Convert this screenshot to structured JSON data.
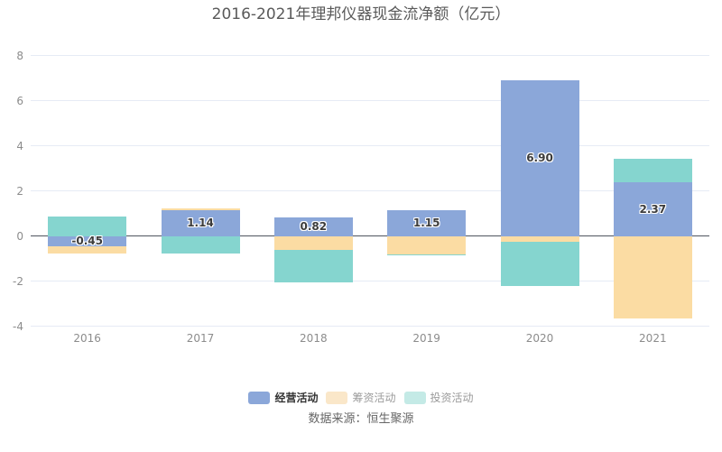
{
  "title": "2016-2021年理邦仪器现金流净额（亿元）",
  "source": "数据来源：恒生聚源",
  "chart_data": {
    "type": "bar",
    "stacked": true,
    "categories": [
      "2016",
      "2017",
      "2018",
      "2019",
      "2020",
      "2021"
    ],
    "series": [
      {
        "key": "operating",
        "name": "经营活动",
        "color": "#8BA7D9",
        "values": [
          -0.45,
          1.14,
          0.82,
          1.15,
          6.9,
          2.37
        ],
        "labels": [
          "-0.45",
          "1.14",
          "0.82",
          "1.15",
          "6.90",
          "2.37"
        ]
      },
      {
        "key": "financing",
        "name": "筹资活动",
        "color": "#FBDCA3",
        "values": [
          -0.33,
          0.08,
          -0.6,
          -0.8,
          -0.26,
          -3.66
        ]
      },
      {
        "key": "investing",
        "name": "投资活动",
        "color": "#85D5CF",
        "values": [
          0.87,
          -0.78,
          -1.45,
          -0.05,
          -1.95,
          1.05
        ]
      }
    ],
    "ylim": [
      -4,
      8
    ],
    "yticks": [
      8,
      6,
      4,
      2,
      0,
      -2,
      -4
    ],
    "grid": true,
    "legend_position": "bottom",
    "colors": {
      "grid_line": "#E6EBF5",
      "zero_line": "#4F545E",
      "axis_label": "#8C8C8C",
      "value_label": "#3C3C3C",
      "title": "#5A5A5A",
      "source": "#666666",
      "background": "#FFFFFF"
    }
  },
  "legend": {
    "items": [
      {
        "key": "operating",
        "label": "经营活动",
        "swatch_color": "#8BA7D9",
        "text_color": "#333333",
        "emphasized": true
      },
      {
        "key": "financing",
        "label": "筹资活动",
        "swatch_color": "#FAE7C9",
        "text_color": "#9B9B9B",
        "emphasized": false
      },
      {
        "key": "investing",
        "label": "投资活动",
        "swatch_color": "#C4EAE6",
        "text_color": "#9B9B9B",
        "emphasized": false
      }
    ]
  }
}
